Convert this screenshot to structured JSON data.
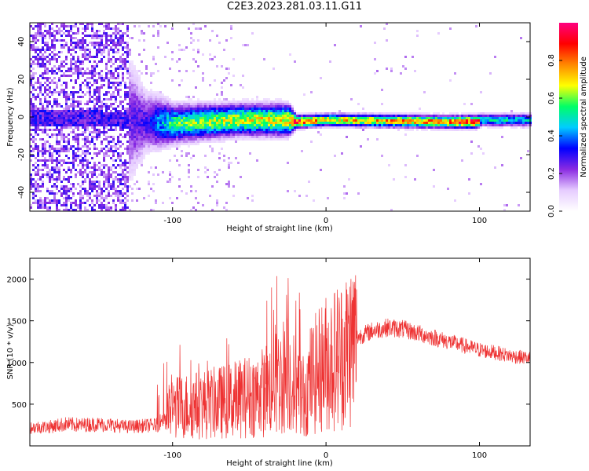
{
  "title": "C2E3.2023.281.03.11.G11",
  "colors": {
    "snr_line": "#ee3333",
    "colormap": [
      "#ffffff",
      "#e6ccff",
      "#8a2be2",
      "#0000ff",
      "#00ccff",
      "#00ff66",
      "#ffff00",
      "#ff8800",
      "#ff0000",
      "#ff0080"
    ]
  },
  "chart_data": [
    {
      "type": "heatmap",
      "title": "",
      "xlabel": "Height of straight line (km)",
      "ylabel": "Frequency (Hz)",
      "xlim": [
        -193,
        133
      ],
      "ylim": [
        -50,
        50
      ],
      "x_ticks": [
        -100,
        0,
        100
      ],
      "y_ticks": [
        -40,
        -20,
        0,
        20,
        40
      ],
      "colorbar": {
        "label": "Normalized spectral amplitude",
        "range": [
          0.0,
          1.0
        ],
        "ticks": [
          "0.0",
          "0.2",
          "0.4",
          "0.6",
          "0.8"
        ]
      },
      "band_profile": {
        "x_km": [
          -193,
          -150,
          -118,
          -100,
          -60,
          -25,
          -20,
          0,
          80,
          98,
          100,
          133
        ],
        "center_hz": [
          0,
          0,
          -2,
          -3,
          -1,
          -1,
          -2,
          -1,
          -2,
          -2,
          -1,
          -1
        ],
        "peak_amplitude": [
          0.2,
          0.2,
          0.3,
          0.6,
          0.7,
          0.75,
          0.95,
          0.75,
          0.85,
          1.0,
          0.55,
          0.5
        ],
        "spread_hz": [
          40,
          40,
          10,
          6,
          5,
          5,
          2,
          2,
          2,
          2,
          2,
          2
        ]
      }
    },
    {
      "type": "line",
      "title": "",
      "xlabel": "Height of straight line (km)",
      "ylabel": "SNR (10 * v/v)",
      "xlim": [
        -193,
        133
      ],
      "ylim": [
        0,
        2250
      ],
      "x_ticks": [
        -100,
        0,
        100
      ],
      "y_ticks": [
        500,
        1000,
        1500,
        2000
      ],
      "series": [
        {
          "x": [
            -193,
            -180,
            -170,
            -160,
            -150,
            -140,
            -130,
            -120,
            -110,
            -105,
            -100,
            -90,
            -80,
            -70,
            -60,
            -50,
            -40,
            -30,
            -25,
            -20,
            -15,
            -10,
            0,
            10,
            20,
            30,
            40,
            50,
            60,
            70,
            80,
            90,
            100,
            110,
            120,
            133
          ],
          "y": [
            220,
            230,
            260,
            250,
            260,
            250,
            230,
            240,
            250,
            350,
            450,
            480,
            500,
            520,
            550,
            600,
            650,
            800,
            900,
            700,
            600,
            800,
            1000,
            1100,
            1300,
            1380,
            1420,
            1400,
            1350,
            1300,
            1250,
            1200,
            1150,
            1120,
            1080,
            1050
          ]
        }
      ]
    }
  ]
}
